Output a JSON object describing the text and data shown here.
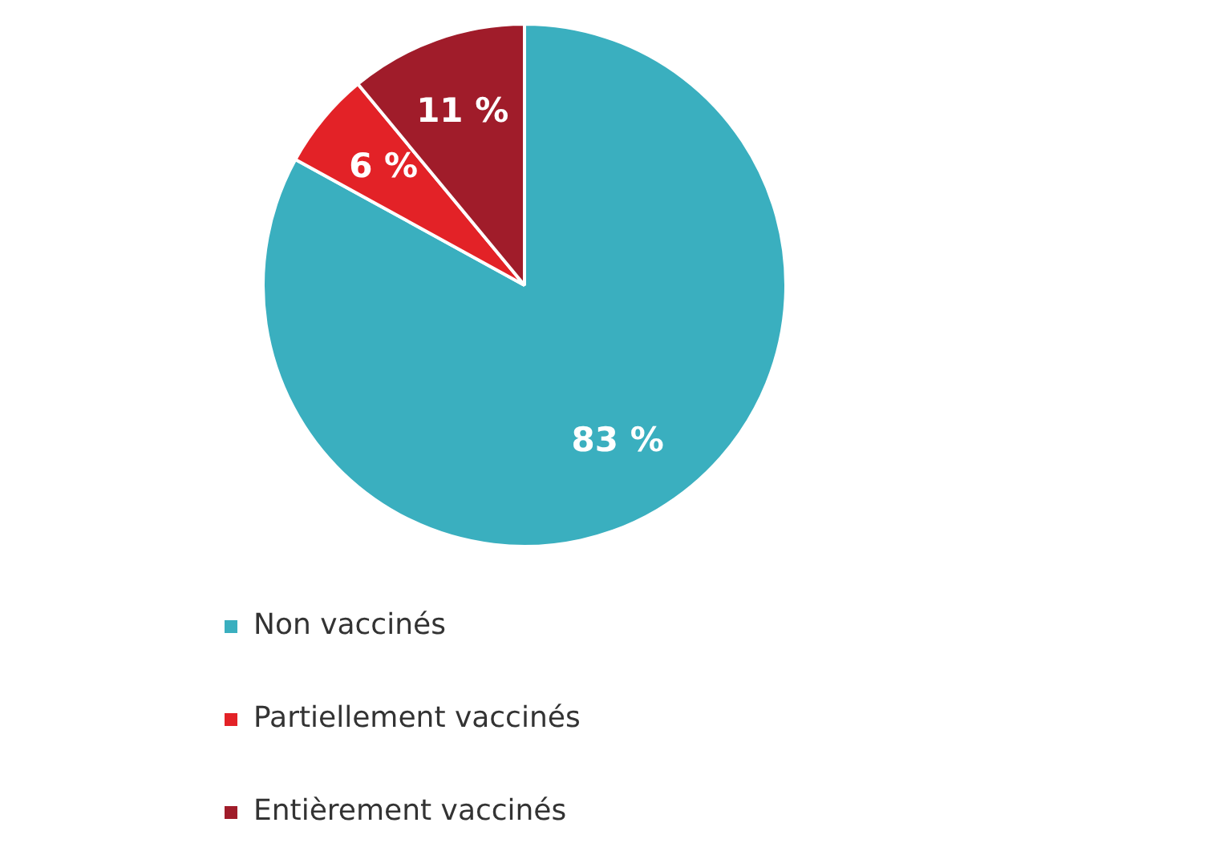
{
  "chart_data": {
    "type": "pie",
    "categories": [
      "Non vaccinés",
      "Partiellement vaccinés",
      "Entièrement vaccinés"
    ],
    "values": [
      83,
      6,
      11
    ],
    "colors": [
      "#3aafbf",
      "#e32227",
      "#a01c2a"
    ],
    "value_labels": [
      "83 %",
      "6 %",
      "11 %"
    ],
    "legend": "bottom"
  }
}
